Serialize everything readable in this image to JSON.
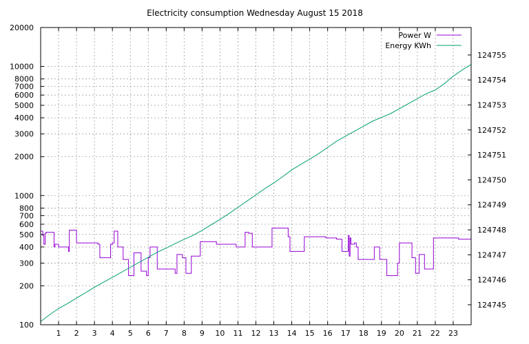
{
  "chart_data": {
    "type": "line",
    "title": "Electricity consumption Wednesday August 15 2018",
    "xlabel": "",
    "ylabel": "",
    "y2label": "",
    "grid": true,
    "legend_position": "top-right",
    "x_range": [
      0,
      24
    ],
    "x_ticks": [
      1,
      2,
      3,
      4,
      5,
      6,
      7,
      8,
      9,
      10,
      11,
      12,
      13,
      14,
      15,
      16,
      17,
      18,
      19,
      20,
      21,
      22,
      23
    ],
    "y_scale": "log",
    "y_range": [
      100,
      20000
    ],
    "y_ticks": [
      {
        "value": 100,
        "label": "100"
      },
      {
        "value": 200,
        "label": "200"
      },
      {
        "value": 300,
        "label": "300"
      },
      {
        "value": 400,
        "label": "400"
      },
      {
        "value": 500,
        "label": "500"
      },
      {
        "value": 600,
        "label": "600"
      },
      {
        "value": 700,
        "label": "700"
      },
      {
        "value": 800,
        "label": "800"
      },
      {
        "value": 1000,
        "label": "1000"
      },
      {
        "value": 2000,
        "label": "2000"
      },
      {
        "value": 3000,
        "label": "3000"
      },
      {
        "value": 4000,
        "label": "4000"
      },
      {
        "value": 5000,
        "label": "5000"
      },
      {
        "value": 6000,
        "label": "6000"
      },
      {
        "value": 7000,
        "label": "7000"
      },
      {
        "value": 8000,
        "label": "8000"
      },
      {
        "value": 10000,
        "label": "10000"
      },
      {
        "value": 20000,
        "label": "20000"
      }
    ],
    "y2_scale": "linear",
    "y2_range": [
      124744.2,
      124756.1
    ],
    "y2_ticks": [
      124745,
      124746,
      124747,
      124748,
      124749,
      124750,
      124751,
      124752,
      124753,
      124754,
      124755
    ],
    "series": [
      {
        "name": "Power W",
        "axis": "y",
        "color": "#9400d3",
        "step": true,
        "x": [
          0,
          0.12,
          0.18,
          0.25,
          0.3,
          0.6,
          0.75,
          0.8,
          1.0,
          1.5,
          1.55,
          1.6,
          1.95,
          2.0,
          2.4,
          2.6,
          2.9,
          3.2,
          3.3,
          3.6,
          3.8,
          3.9,
          4.0,
          4.1,
          4.2,
          4.3,
          4.45,
          4.6,
          4.75,
          4.8,
          4.9,
          5.1,
          5.2,
          5.3,
          5.6,
          5.85,
          5.9,
          6.0,
          6.1,
          6.3,
          6.5,
          6.8,
          7.1,
          7.5,
          7.6,
          7.9,
          8.1,
          8.2,
          8.4,
          8.5,
          8.9,
          9.3,
          9.8,
          10.3,
          10.6,
          10.9,
          11.2,
          11.4,
          11.45,
          11.6,
          11.8,
          12.3,
          12.7,
          12.9,
          13.2,
          13.5,
          13.8,
          13.9,
          14.1,
          14.6,
          14.7,
          14.9,
          15.2,
          15.5,
          15.9,
          16.3,
          16.5,
          16.8,
          17.0,
          17.1,
          17.15,
          17.2,
          17.25,
          17.3,
          17.5,
          17.6,
          17.7,
          17.9,
          18.2,
          18.6,
          18.7,
          18.9,
          19.3,
          19.5,
          19.55,
          19.6,
          19.9,
          20.0,
          20.2,
          20.7,
          20.8,
          20.9,
          21.1,
          21.2,
          21.4,
          21.8,
          21.9,
          22.2,
          22.5,
          22.8,
          23.3,
          24.0
        ],
        "values": [
          530,
          490,
          420,
          510,
          520,
          520,
          400,
          420,
          400,
          400,
          370,
          540,
          540,
          430,
          430,
          430,
          430,
          420,
          330,
          330,
          330,
          420,
          430,
          530,
          530,
          400,
          400,
          320,
          320,
          320,
          240,
          240,
          360,
          360,
          260,
          260,
          240,
          330,
          400,
          400,
          270,
          270,
          270,
          250,
          350,
          330,
          250,
          250,
          340,
          340,
          440,
          440,
          420,
          420,
          420,
          400,
          400,
          520,
          520,
          510,
          400,
          400,
          400,
          560,
          560,
          560,
          480,
          370,
          370,
          370,
          480,
          480,
          480,
          480,
          470,
          470,
          460,
          370,
          370,
          370,
          490,
          340,
          470,
          420,
          430,
          400,
          320,
          320,
          320,
          400,
          400,
          320,
          240,
          240,
          240,
          240,
          300,
          430,
          430,
          330,
          330,
          250,
          350,
          350,
          270,
          270,
          470,
          470,
          470,
          470,
          460,
          460
        ]
      },
      {
        "name": "Energy KWh",
        "axis": "y2",
        "color": "#009e73",
        "step": false,
        "x": [
          0,
          0.5,
          1,
          1.5,
          2,
          2.5,
          3,
          3.5,
          4,
          4.5,
          5,
          5.5,
          6,
          6.5,
          7,
          7.5,
          8,
          8.5,
          9,
          9.5,
          10,
          10.5,
          11,
          11.5,
          12,
          12.5,
          13,
          13.5,
          14,
          14.5,
          15,
          15.5,
          16,
          16.5,
          17,
          17.5,
          18,
          18.5,
          19,
          19.5,
          20,
          20.5,
          21,
          21.5,
          22,
          22.5,
          23,
          23.5,
          24
        ],
        "values": [
          124744.33,
          124744.6,
          124744.85,
          124745.05,
          124745.27,
          124745.48,
          124745.7,
          124745.9,
          124746.1,
          124746.3,
          124746.5,
          124746.7,
          124746.9,
          124747.1,
          124747.27,
          124747.45,
          124747.62,
          124747.78,
          124747.98,
          124748.2,
          124748.42,
          124748.65,
          124748.9,
          124749.15,
          124749.4,
          124749.65,
          124749.88,
          124750.13,
          124750.4,
          124750.62,
          124750.83,
          124751.05,
          124751.3,
          124751.55,
          124751.75,
          124751.95,
          124752.15,
          124752.35,
          124752.5,
          124752.65,
          124752.85,
          124753.05,
          124753.25,
          124753.45,
          124753.6,
          124753.85,
          124754.15,
          124754.4,
          124754.62
        ]
      }
    ]
  }
}
